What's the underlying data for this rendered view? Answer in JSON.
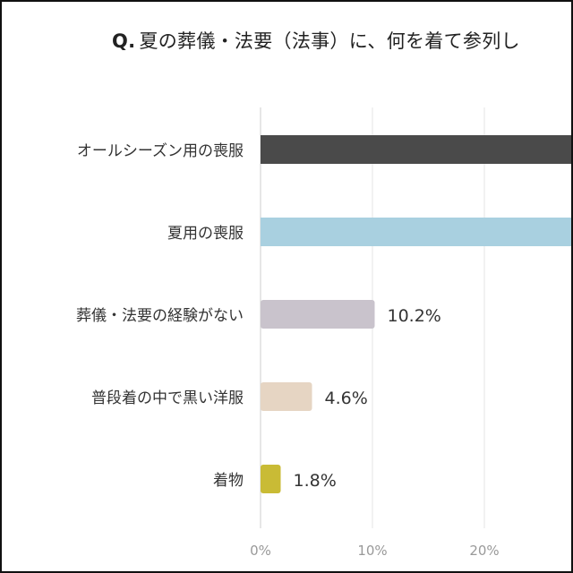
{
  "chart_data": {
    "type": "bar",
    "orientation": "horizontal",
    "title_prefix": "Q.",
    "title": "夏の葬儀・法要（法事）に、何を着て参列し",
    "categories": [
      "オールシーズン用の喪服",
      "夏用の喪服",
      "葬儀・法要の経験がない",
      "普段着の中で黒い洋服",
      "着物"
    ],
    "values": [
      null,
      null,
      10.2,
      4.6,
      1.8
    ],
    "data_labels": [
      "",
      "",
      "10.2%",
      "4.6%",
      "1.8%"
    ],
    "colors": [
      "#4a4a4a",
      "#a9d0e0",
      "#c9c3cc",
      "#e6d5c3",
      "#c9bb35"
    ],
    "x_ticks": [
      "0%",
      "10%",
      "20%"
    ],
    "x_tick_values": [
      0,
      10,
      20
    ],
    "xlim": [
      0,
      28
    ],
    "grid": true,
    "note": "The first two bars extend beyond the visible crop; their values are not shown."
  }
}
